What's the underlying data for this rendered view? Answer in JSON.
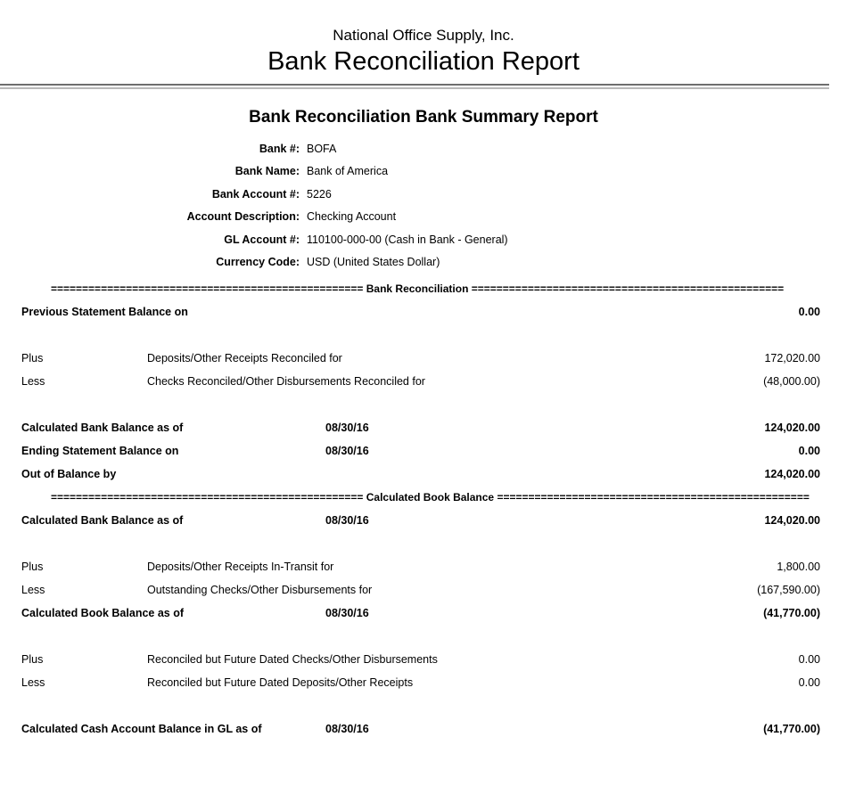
{
  "header": {
    "company": "National Office Supply, Inc.",
    "title": "Bank Reconciliation Report"
  },
  "summary": {
    "title": "Bank Reconciliation Bank Summary Report",
    "fields": [
      {
        "label": "Bank #:",
        "value": "BOFA"
      },
      {
        "label": "Bank Name:",
        "value": "Bank of America"
      },
      {
        "label": "Bank Account #:",
        "value": "5226"
      },
      {
        "label": "Account Description:",
        "value": "Checking Account"
      },
      {
        "label": "GL Account #:",
        "value": "110100-000-00 (Cash in Bank - General)"
      },
      {
        "label": "Currency Code:",
        "value": "USD (United States Dollar)"
      }
    ]
  },
  "report": {
    "divider_fill": "==================================================",
    "rows": [
      {
        "type": "divider",
        "label": "Bank Reconciliation"
      },
      {
        "type": "row",
        "label": "Previous Statement Balance on",
        "amount": "0.00",
        "bold": true
      },
      {
        "type": "spacer"
      },
      {
        "type": "row",
        "prefix": "Plus",
        "desc": "Deposits/Other Receipts Reconciled for",
        "amount": "172,020.00",
        "bold": false
      },
      {
        "type": "row",
        "prefix": "Less",
        "desc": "Checks Reconciled/Other Disbursements Reconciled for",
        "amount": "(48,000.00)",
        "bold": false
      },
      {
        "type": "spacer"
      },
      {
        "type": "row",
        "label": "Calculated Bank Balance as of",
        "date": "08/30/16",
        "amount": "124,020.00",
        "bold": true
      },
      {
        "type": "row",
        "label": "Ending Statement Balance on",
        "date": "08/30/16",
        "amount": "0.00",
        "bold": true
      },
      {
        "type": "row",
        "label": "Out of Balance by",
        "amount": "124,020.00",
        "bold": true
      },
      {
        "type": "divider",
        "label": "Calculated Book Balance"
      },
      {
        "type": "row",
        "label": "Calculated Bank Balance as of",
        "date": "08/30/16",
        "amount": "124,020.00",
        "bold": true
      },
      {
        "type": "spacer"
      },
      {
        "type": "row",
        "prefix": "Plus",
        "desc": "Deposits/Other Receipts In-Transit for",
        "amount": "1,800.00",
        "bold": false
      },
      {
        "type": "row",
        "prefix": "Less",
        "desc": "Outstanding Checks/Other Disbursements for",
        "amount": "(167,590.00)",
        "bold": false
      },
      {
        "type": "row",
        "label": "Calculated Book Balance as of",
        "date": "08/30/16",
        "amount": "(41,770.00)",
        "bold": true
      },
      {
        "type": "spacer"
      },
      {
        "type": "row",
        "prefix": "Plus",
        "desc": "Reconciled but Future Dated Checks/Other Disbursements",
        "amount": "0.00",
        "bold": false
      },
      {
        "type": "row",
        "prefix": "Less",
        "desc": "Reconciled but Future Dated Deposits/Other Receipts",
        "amount": "0.00",
        "bold": false
      },
      {
        "type": "spacer"
      },
      {
        "type": "row",
        "label": "Calculated Cash Account Balance in GL as of",
        "date": "08/30/16",
        "amount": "(41,770.00)",
        "bold": true
      }
    ]
  },
  "colors": {
    "background": "#ffffff",
    "text": "#000000",
    "rule_dark": "#6e6e6e",
    "rule_light": "#b9b9b9"
  }
}
